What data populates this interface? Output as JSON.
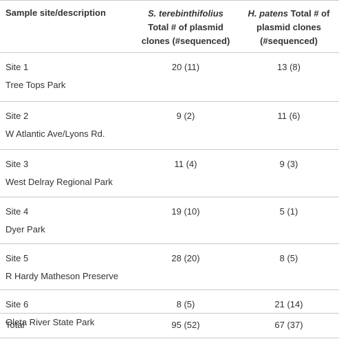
{
  "header": {
    "col1": "Sample site/description",
    "col2_italic": "S. terebinthifolius",
    "col2_rest": "Total # of plasmid clones (#sequenced)",
    "col3_italic": "H. patens",
    "col3_rest": " Total # of plasmid clones (#sequenced)"
  },
  "rows": [
    {
      "site": "Site 1",
      "description": "Tree Tops Park",
      "s_val": "20 (11)",
      "h_val": "13 (8)"
    },
    {
      "site": "Site 2",
      "description": "W Atlantic Ave/Lyons Rd.",
      "s_val": "9 (2)",
      "h_val": "11 (6)"
    },
    {
      "site": "Site 3",
      "description": "West Delray Regional Park",
      "s_val": "11 (4)",
      "h_val": "9 (3)"
    },
    {
      "site": "Site 4",
      "description": "Dyer Park",
      "s_val": "19 (10)",
      "h_val": "5 (1)"
    },
    {
      "site": "Site 5",
      "description": "R Hardy Matheson Preserve",
      "s_val": "28 (20)",
      "h_val": "8 (5)"
    },
    {
      "site": "Site 6",
      "description": "Oleta River State Park",
      "s_val": "8 (5)",
      "h_val": "21 (14)"
    }
  ],
  "total": {
    "label": "Total",
    "s_val": "95 (52)",
    "h_val": "67 (37)"
  }
}
